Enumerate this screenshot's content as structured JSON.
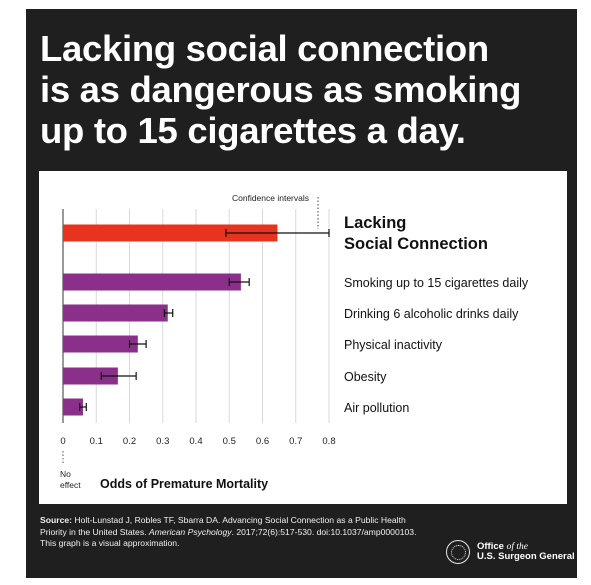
{
  "headline": {
    "line1": "Lacking social connection",
    "line2": "is as dangerous as smoking",
    "line3": "up to 15 cigarettes a day."
  },
  "chart_data": {
    "type": "bar",
    "orientation": "horizontal",
    "xlabel": "Odds of Premature Mortality",
    "xlim": [
      0,
      0.8
    ],
    "xticks": [
      0,
      0.1,
      0.2,
      0.3,
      0.4,
      0.5,
      0.6,
      0.7,
      0.8
    ],
    "xtick_labels": [
      "0",
      "0.1",
      "0.2",
      "0.3",
      "0.4",
      "0.5",
      "0.6",
      "0.7",
      "0.8"
    ],
    "zero_label": "No\neffect",
    "grid": true,
    "annotation": "Confidence intervals",
    "categories": [
      "Lacking\nSocial Connection",
      "Smoking up to 15 cigarettes daily",
      "Drinking 6 alcoholic drinks daily",
      "Physical inactivity",
      "Obesity",
      "Air pollution"
    ],
    "values": [
      0.645,
      0.535,
      0.315,
      0.225,
      0.165,
      0.06
    ],
    "ci_low": [
      0.49,
      0.5,
      0.305,
      0.2,
      0.115,
      0.05
    ],
    "ci_high": [
      0.8,
      0.56,
      0.33,
      0.25,
      0.22,
      0.07
    ],
    "colors": [
      "#e8331f",
      "#8a2f8a",
      "#8a2f8a",
      "#8a2f8a",
      "#8a2f8a",
      "#8a2f8a"
    ]
  },
  "footer": {
    "source_label": "Source:",
    "source_text": "Holt-Lunstad J, Robles TF, Sbarra DA. Advancing Social Connection as a Public Health Priority in the United States.",
    "journal": "American Psychology",
    "citation_rest": ". 2017;72(6):517-530. doi:10.1037/amp0000103. This graph is a visual approximation.",
    "org_line1_a": "Office",
    "org_line1_b": "of the",
    "org_line2": "U.S. Surgeon General",
    "seal_icon": "seal-icon"
  }
}
